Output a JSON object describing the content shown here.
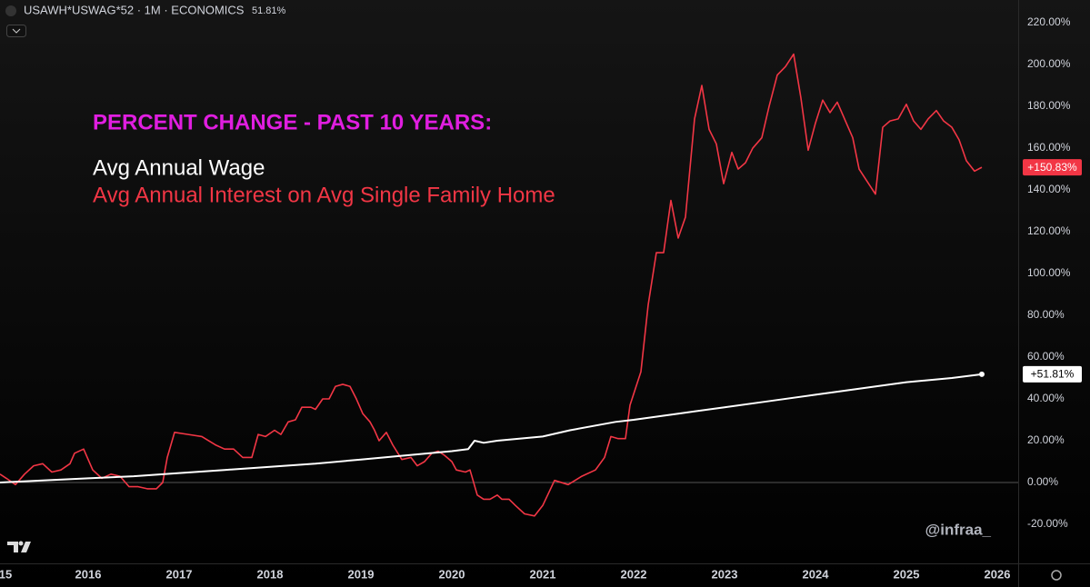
{
  "chart_data": {
    "type": "line",
    "symbol": "USAWH*USWAG*52 · 1M · ECONOMICS",
    "header_value": "51.81%",
    "title": "PERCENT CHANGE - PAST 10 YEARS:",
    "watermark": "@infraa_",
    "xlim": [
      2015.03,
      2026.23
    ],
    "xticks": [
      {
        "value": 2015,
        "label": "15"
      },
      2016,
      2017,
      2018,
      2019,
      2020,
      2021,
      2022,
      2023,
      2024,
      2025,
      2026
    ],
    "ylim": [
      -38.7,
      230.9
    ],
    "yticks": [
      {
        "value": -20,
        "label": "-20.00%"
      },
      {
        "value": 0,
        "label": "0.00%"
      },
      {
        "value": 20,
        "label": "20.00%"
      },
      {
        "value": 40,
        "label": "40.00%"
      },
      {
        "value": 60,
        "label": "60.00%"
      },
      {
        "value": 80,
        "label": "80.00%"
      },
      {
        "value": 100,
        "label": "100.00%"
      },
      {
        "value": 120,
        "label": "120.00%"
      },
      {
        "value": 140,
        "label": "140.00%"
      },
      {
        "value": 160,
        "label": "160.00%"
      },
      {
        "value": 180,
        "label": "180.00%"
      },
      {
        "value": 200,
        "label": "200.00%"
      },
      {
        "value": 220,
        "label": "220.00%"
      }
    ],
    "grid": false,
    "series": [
      {
        "name": "Avg Annual Wage",
        "color": "#ffffff",
        "x": [
          2015.03,
          2015.5,
          2016,
          2016.5,
          2017,
          2017.5,
          2018,
          2018.5,
          2019,
          2019.5,
          2020,
          2020.18,
          2020.25,
          2020.35,
          2020.5,
          2021,
          2021.3,
          2021.8,
          2022,
          2022.5,
          2023,
          2023.5,
          2024,
          2024.5,
          2025,
          2025.5,
          2025.83
        ],
        "values": [
          0,
          1,
          2,
          3,
          4.5,
          6,
          7.5,
          9,
          11,
          13,
          15,
          16,
          20,
          19,
          20,
          22,
          25,
          29,
          30,
          33,
          36,
          39,
          42,
          45,
          48,
          50,
          51.81
        ],
        "last_value": {
          "value": 51.81,
          "label": "+51.81%"
        }
      },
      {
        "name": "Avg Annual Interest on Avg Single Family Home",
        "color": "#f23645",
        "x": [
          2015.03,
          2015.1,
          2015.2,
          2015.3,
          2015.4,
          2015.5,
          2015.6,
          2015.7,
          2015.8,
          2015.85,
          2015.95,
          2016.05,
          2016.15,
          2016.25,
          2016.35,
          2016.45,
          2016.55,
          2016.65,
          2016.75,
          2016.82,
          2016.87,
          2016.95,
          2017.1,
          2017.25,
          2017.4,
          2017.5,
          2017.6,
          2017.7,
          2017.8,
          2017.87,
          2017.95,
          2018.05,
          2018.12,
          2018.2,
          2018.28,
          2018.35,
          2018.45,
          2018.5,
          2018.58,
          2018.65,
          2018.72,
          2018.8,
          2018.88,
          2018.95,
          2019.02,
          2019.1,
          2019.15,
          2019.2,
          2019.28,
          2019.35,
          2019.45,
          2019.55,
          2019.62,
          2019.7,
          2019.78,
          2019.85,
          2019.92,
          2020.0,
          2020.05,
          2020.15,
          2020.2,
          2020.28,
          2020.35,
          2020.42,
          2020.5,
          2020.55,
          2020.63,
          2020.7,
          2020.8,
          2020.91,
          2021.0,
          2021.13,
          2021.28,
          2021.43,
          2021.58,
          2021.68,
          2021.75,
          2021.83,
          2021.91,
          2021.96,
          2022.08,
          2022.16,
          2022.25,
          2022.33,
          2022.41,
          2022.49,
          2022.57,
          2022.67,
          2022.75,
          2022.83,
          2022.91,
          2022.99,
          2023.08,
          2023.15,
          2023.23,
          2023.31,
          2023.41,
          2023.49,
          2023.58,
          2023.67,
          2023.76,
          2023.84,
          2023.92,
          2024.0,
          2024.08,
          2024.16,
          2024.24,
          2024.33,
          2024.41,
          2024.48,
          2024.66,
          2024.74,
          2024.82,
          2024.91,
          2025.0,
          2025.08,
          2025.16,
          2025.24,
          2025.33,
          2025.41,
          2025.5,
          2025.58,
          2025.66,
          2025.75,
          2025.83
        ],
        "values": [
          4,
          2,
          -1,
          4,
          8,
          9,
          5,
          6,
          9,
          14,
          16,
          6,
          2,
          4,
          3,
          -2,
          -2,
          -3,
          -3,
          0,
          12,
          24,
          23,
          22,
          18,
          16,
          16,
          12,
          12,
          23,
          22,
          25,
          23,
          29,
          30,
          36,
          36,
          35,
          40,
          40,
          46,
          47,
          46,
          40,
          33,
          29,
          25,
          20,
          24,
          18,
          11,
          12,
          8,
          10,
          14,
          15,
          13,
          10,
          6,
          5,
          6,
          -6,
          -8,
          -8,
          -6,
          -8,
          -8,
          -11,
          -15,
          -16,
          -11,
          1,
          -1,
          3,
          6,
          12,
          22,
          21,
          21,
          37,
          53,
          85,
          110,
          110,
          135,
          117,
          127,
          174,
          190,
          169,
          162,
          143,
          158,
          150,
          153,
          160,
          165,
          180,
          195,
          199,
          205,
          184,
          159,
          172,
          183,
          177,
          182,
          173,
          165,
          150,
          138,
          170,
          173,
          174,
          181,
          173,
          169,
          174,
          178,
          173,
          170,
          164,
          154,
          149,
          150.83
        ],
        "last_value": {
          "value": 150.83,
          "label": "+150.83%"
        }
      }
    ]
  }
}
